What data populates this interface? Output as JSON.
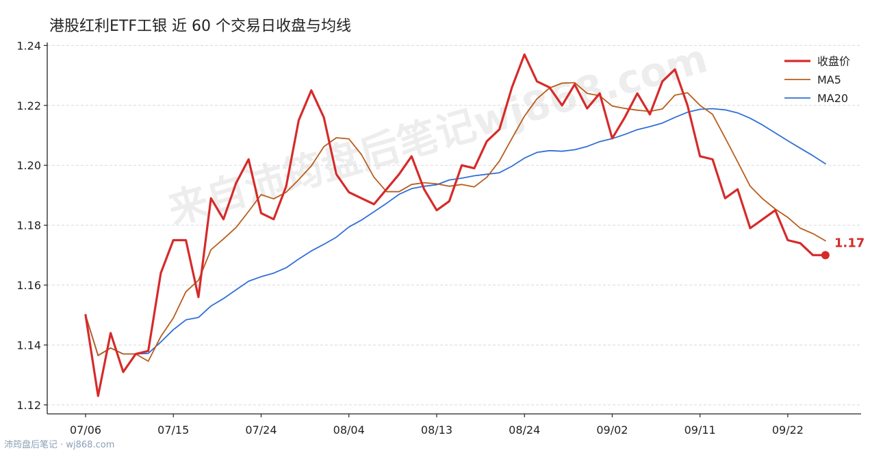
{
  "chart_data": {
    "type": "line",
    "title": "港股红利ETF工银 近 60 个交易日收盘与均线",
    "xlabel": "",
    "ylabel": "",
    "ylim": [
      1.117,
      1.241
    ],
    "yticks": [
      "1.12",
      "1.14",
      "1.16",
      "1.18",
      "1.20",
      "1.22",
      "1.24"
    ],
    "xtick_labels": [
      "07/06",
      "07/15",
      "07/24",
      "08/04",
      "08/13",
      "08/24",
      "09/02",
      "09/11",
      "09/22"
    ],
    "xtick_index": [
      0,
      7,
      14,
      21,
      28,
      35,
      42,
      49,
      56
    ],
    "grid": "horizontal dashed",
    "legend_position": "top-right",
    "last_value_label": "1.17",
    "series": [
      {
        "name": "收盘价",
        "color": "#d62a2a",
        "values": [
          1.15,
          1.123,
          1.144,
          1.131,
          1.137,
          1.138,
          1.164,
          1.175,
          1.175,
          1.156,
          1.189,
          1.182,
          1.194,
          1.202,
          1.184,
          1.182,
          1.193,
          1.215,
          1.225,
          1.216,
          1.197,
          1.191,
          1.189,
          1.187,
          1.192,
          1.197,
          1.203,
          1.192,
          1.185,
          1.188,
          1.2,
          1.199,
          1.208,
          1.212,
          1.226,
          1.237,
          1.228,
          1.226,
          1.22,
          1.227,
          1.219,
          1.224,
          1.209,
          1.216,
          1.224,
          1.217,
          1.228,
          1.232,
          1.22,
          1.203,
          1.202,
          1.189,
          1.192,
          1.179,
          1.182,
          1.185,
          1.175,
          1.174,
          1.17,
          1.17
        ]
      },
      {
        "name": "MA5",
        "color": "#b85c1a",
        "values": [
          1.15,
          1.1365,
          1.139,
          1.137,
          1.137,
          1.1346,
          1.1428,
          1.149,
          1.1578,
          1.1616,
          1.1718,
          1.1754,
          1.1792,
          1.1846,
          1.1902,
          1.1888,
          1.191,
          1.1952,
          1.1998,
          1.2062,
          1.2092,
          1.2088,
          1.2036,
          1.196,
          1.1912,
          1.1912,
          1.1936,
          1.1942,
          1.1938,
          1.193,
          1.1936,
          1.1928,
          1.196,
          1.2014,
          1.209,
          1.2164,
          1.2222,
          1.2258,
          1.2274,
          1.2276,
          1.224,
          1.2232,
          1.2198,
          1.219,
          1.2184,
          1.218,
          1.2188,
          1.2234,
          1.2242,
          1.22,
          1.217,
          1.2092,
          1.2012,
          1.193,
          1.1888,
          1.1854,
          1.1826,
          1.179,
          1.1772,
          1.1748
        ]
      },
      {
        "name": "MA20",
        "color": "#2f6fd6",
        "values": [
          1.15,
          1.1365,
          1.139,
          1.137,
          1.137,
          1.1372,
          1.141,
          1.1451,
          1.1484,
          1.1492,
          1.153,
          1.1555,
          1.1584,
          1.1613,
          1.1628,
          1.164,
          1.1658,
          1.1687,
          1.1714,
          1.1736,
          1.176,
          1.1794,
          1.1817,
          1.1845,
          1.1873,
          1.1903,
          1.1922,
          1.193,
          1.1935,
          1.1951,
          1.1957,
          1.1965,
          1.197,
          1.1975,
          1.1997,
          1.2024,
          1.2043,
          1.2049,
          1.2047,
          1.2052,
          1.2063,
          1.2079,
          1.2089,
          1.2103,
          1.2119,
          1.2129,
          1.2141,
          1.216,
          1.2177,
          1.2187,
          1.2189,
          1.2185,
          1.2175,
          1.2157,
          1.2134,
          1.2108,
          1.2082,
          1.2057,
          1.2032,
          1.2005
        ]
      }
    ]
  },
  "watermark": "来自沛筠盘后笔记wj868.com",
  "footer": "沛筠盘后笔记 · wj868.com"
}
